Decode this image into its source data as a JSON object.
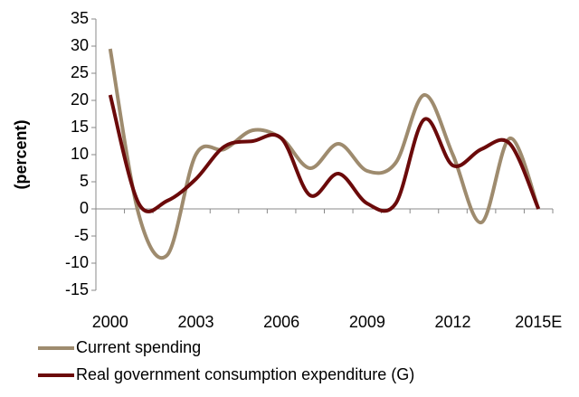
{
  "chart_data": {
    "type": "line",
    "y_label": "(percent)",
    "categories": [
      "2000",
      null,
      null,
      "2003",
      null,
      null,
      "2006",
      null,
      null,
      "2009",
      null,
      null,
      "2012",
      null,
      null,
      "2015E"
    ],
    "series": [
      {
        "name": "Current spending",
        "color": "#9e8b6e",
        "values": [
          29.5,
          -1,
          -8.5,
          10,
          11,
          14.5,
          13,
          7.5,
          12,
          7,
          8.5,
          21,
          10,
          -2.5,
          13,
          0
        ]
      },
      {
        "name": "Real government consumption expenditure (G)",
        "color": "#6b0a0a",
        "values": [
          21,
          1,
          1.5,
          5.5,
          11.5,
          12.5,
          13,
          2.5,
          6.5,
          1,
          1,
          16.5,
          8,
          11,
          12,
          0
        ]
      }
    ],
    "ylim": [
      -15,
      35
    ],
    "yticks": [
      -15,
      -10,
      -5,
      0,
      5,
      10,
      15,
      20,
      25,
      30,
      35
    ]
  }
}
